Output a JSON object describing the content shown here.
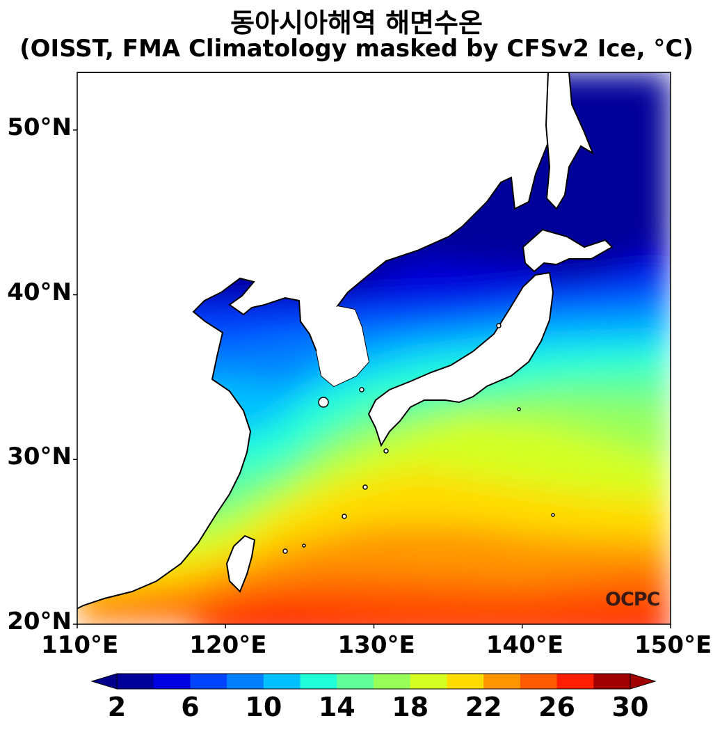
{
  "title": {
    "line1": "동아시아해역 해면수온",
    "line2": "(OISST, FMA Climatology masked by CFSv2 Ice, °C)"
  },
  "map": {
    "projection": "PlateCarree",
    "lon_range": [
      110,
      150
    ],
    "lat_range": [
      20,
      53.5
    ],
    "lat_ticks": [
      "20°N",
      "30°N",
      "40°N",
      "50°N"
    ],
    "lon_ticks": [
      "110°E",
      "120°E",
      "130°E",
      "140°E",
      "150°E"
    ],
    "variable": "sea surface temperature",
    "units": "°C",
    "land_color": "#ffffff",
    "coastline_color": "#000000"
  },
  "colorbar": {
    "levels": [
      2,
      4,
      6,
      8,
      10,
      12,
      14,
      16,
      18,
      20,
      22,
      24,
      26,
      28,
      30
    ],
    "labels": [
      "2",
      "6",
      "10",
      "14",
      "18",
      "22",
      "26",
      "30"
    ],
    "extend": "both",
    "under_color": "#00008c",
    "over_color": "#a00000",
    "colors": [
      "#00009a",
      "#0000e0",
      "#0044ff",
      "#0080ff",
      "#00c0ff",
      "#20ffd8",
      "#60ff9a",
      "#98ff58",
      "#d4ff20",
      "#ffdc00",
      "#ff9600",
      "#ff5a00",
      "#ff1e00",
      "#a00000"
    ]
  },
  "logo": "OCPC"
}
